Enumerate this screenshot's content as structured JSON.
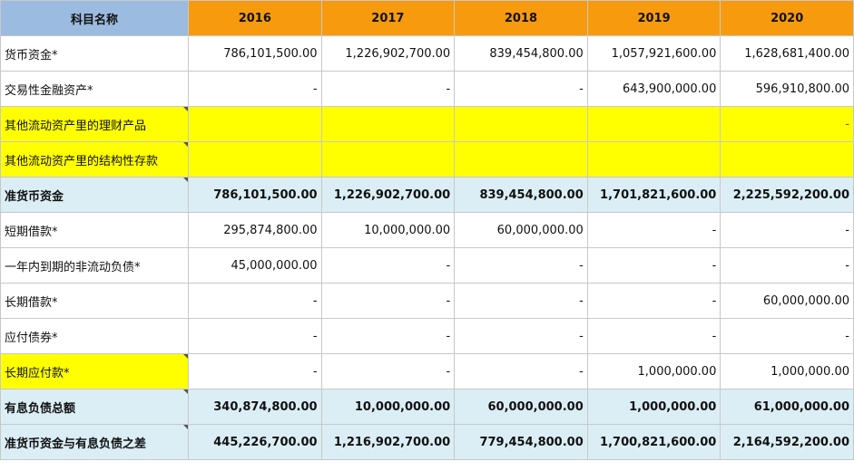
{
  "header": {
    "name_label": "科目名称",
    "years": [
      "2016",
      "2017",
      "2018",
      "2019",
      "2020"
    ]
  },
  "rows": [
    {
      "label": "货币资金*",
      "style": "normal",
      "values": [
        "786,101,500.00",
        "1,226,902,700.00",
        "839,454,800.00",
        "1,057,921,600.00",
        "1,628,681,400.00"
      ]
    },
    {
      "label": "交易性金融资产*",
      "style": "normal",
      "values": [
        "-",
        "-",
        "-",
        "643,900,000.00",
        "596,910,800.00"
      ]
    },
    {
      "label": "其他流动资产里的理财产品",
      "style": "yellow",
      "values": [
        "",
        "",
        "",
        "",
        "-"
      ]
    },
    {
      "label": "其他流动资产里的结构性存款",
      "style": "yellow",
      "values": [
        "",
        "",
        "",
        "",
        ""
      ]
    },
    {
      "label": "准货币资金",
      "style": "sum",
      "values": [
        "786,101,500.00",
        "1,226,902,700.00",
        "839,454,800.00",
        "1,701,821,600.00",
        "2,225,592,200.00"
      ]
    },
    {
      "label": "短期借款*",
      "style": "normal",
      "values": [
        "295,874,800.00",
        "10,000,000.00",
        "60,000,000.00",
        "-",
        "-"
      ]
    },
    {
      "label": "一年内到期的非流动负债*",
      "style": "normal",
      "values": [
        "45,000,000.00",
        "-",
        "-",
        "-",
        "-"
      ]
    },
    {
      "label": "长期借款*",
      "style": "normal",
      "values": [
        "-",
        "-",
        "-",
        "-",
        "60,000,000.00"
      ]
    },
    {
      "label": "应付债券*",
      "style": "normal",
      "values": [
        "-",
        "-",
        "-",
        "-",
        "-"
      ]
    },
    {
      "label": "长期应付款*",
      "style": "label-yellow",
      "values": [
        "-",
        "-",
        "-",
        "1,000,000.00",
        "1,000,000.00"
      ]
    },
    {
      "label": "有息负债总额",
      "style": "sum",
      "values": [
        "340,874,800.00",
        "10,000,000.00",
        "60,000,000.00",
        "1,000,000.00",
        "61,000,000.00"
      ]
    },
    {
      "label": "准货币资金与有息负债之差",
      "style": "sum",
      "values": [
        "445,226,700.00",
        "1,216,902,700.00",
        "779,454,800.00",
        "1,700,821,600.00",
        "2,164,592,200.00"
      ]
    }
  ],
  "colors": {
    "header_name_bg": "#9bbbe0",
    "header_year_bg": "#f79a0e",
    "highlight_yellow": "#ffff00",
    "sum_row_bg": "#dbeef5",
    "freeze_line": "#2fb36f"
  }
}
